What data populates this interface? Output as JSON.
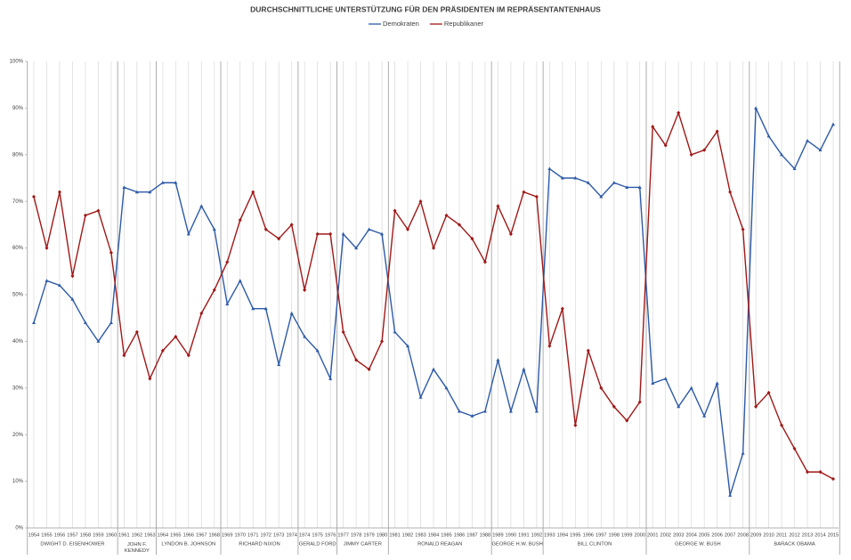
{
  "chart_data": {
    "type": "line",
    "title": "DURCHSCHNITTLICHE UNTERSTÜTZUNG FÜR DEN PRÄSIDENTEN IM REPRÄSENTANTENHAUS",
    "categories": [
      "1954",
      "1955",
      "1956",
      "1957",
      "1958",
      "1959",
      "1960",
      "1961",
      "1962",
      "1963",
      "1964",
      "1965",
      "1966",
      "1967",
      "1968",
      "1969",
      "1970",
      "1971",
      "1972",
      "1973",
      "1974",
      "1974",
      "1975",
      "1976",
      "1977",
      "1978",
      "1979",
      "1980",
      "1981",
      "1982",
      "1983",
      "1984",
      "1985",
      "1986",
      "1987",
      "1988",
      "1989",
      "1990",
      "1991",
      "1992",
      "1993",
      "1994",
      "1995",
      "1996",
      "1997",
      "1998",
      "1999",
      "2000",
      "2001",
      "2002",
      "2003",
      "2004",
      "2005",
      "2006",
      "2007",
      "2008",
      "2009",
      "2010",
      "2011",
      "2012",
      "2013",
      "2014",
      "2015"
    ],
    "series": [
      {
        "name": "Demokraten",
        "color": "#2e5aa8",
        "values": [
          44,
          53,
          52,
          49,
          44,
          40,
          44,
          73,
          72,
          72,
          74,
          74,
          63,
          69,
          64,
          48,
          53,
          47,
          47,
          35,
          46,
          41,
          38,
          32,
          63,
          60,
          64,
          63,
          42,
          39,
          28,
          34,
          30,
          25,
          24,
          25,
          36,
          25,
          34,
          25,
          77,
          75,
          75,
          74,
          71,
          74,
          73,
          73,
          31,
          32,
          26,
          30,
          24,
          31,
          7,
          16,
          90,
          84,
          80,
          77,
          83,
          81,
          86.5
        ]
      },
      {
        "name": "Republikaner",
        "color": "#a01818",
        "values": [
          71,
          60,
          72,
          54,
          67,
          68,
          59,
          37,
          42,
          32,
          38,
          41,
          37,
          46,
          51,
          57,
          66,
          72,
          64,
          62,
          65,
          51,
          63,
          63,
          42,
          36,
          34,
          40,
          68,
          64,
          70,
          60,
          67,
          65,
          62,
          57,
          69,
          63,
          72,
          71,
          39,
          47,
          22,
          38,
          30,
          26,
          23,
          27,
          86,
          82,
          89,
          80,
          81,
          85,
          72,
          64,
          26,
          29,
          22,
          17,
          12,
          12,
          10.5
        ]
      }
    ],
    "presidents": [
      {
        "name": "DWIGHT D. EISENHOWER",
        "from": "1954",
        "to": "1960"
      },
      {
        "name": "JOHN F. KENNEDY",
        "from": "1961",
        "to": "1963"
      },
      {
        "name": "LYNDON B. JOHNSON",
        "from": "1964",
        "to": "1968"
      },
      {
        "name": "RICHARD NIXON",
        "from": "1969",
        "to": "1974"
      },
      {
        "name": "GERALD FORD",
        "from": "1974",
        "to": "1976"
      },
      {
        "name": "JIMMY CARTER",
        "from": "1977",
        "to": "1980"
      },
      {
        "name": "RONALD REAGAN",
        "from": "1981",
        "to": "1988"
      },
      {
        "name": "GEORGE H.W. BUSH",
        "from": "1989",
        "to": "1992"
      },
      {
        "name": "BILL CLINTON",
        "from": "1993",
        "to": "2000"
      },
      {
        "name": "GEORGE W. BUSH",
        "from": "2001",
        "to": "2008"
      },
      {
        "name": "BARACK OBAMA",
        "from": "2009",
        "to": "2015"
      }
    ],
    "ylim": [
      0,
      100
    ],
    "yticks": [
      {
        "value": 0,
        "label": "0%"
      },
      {
        "value": 10,
        "label": "10%"
      },
      {
        "value": 20,
        "label": "20%"
      },
      {
        "value": 30,
        "label": "30%"
      },
      {
        "value": 40,
        "label": "40%"
      },
      {
        "value": 50,
        "label": "50%"
      },
      {
        "value": 60,
        "label": "60%"
      },
      {
        "value": 70,
        "label": "70%"
      },
      {
        "value": 80,
        "label": "80%"
      },
      {
        "value": 90,
        "label": "90%"
      },
      {
        "value": 100,
        "label": "100%"
      }
    ],
    "legend": "top"
  }
}
